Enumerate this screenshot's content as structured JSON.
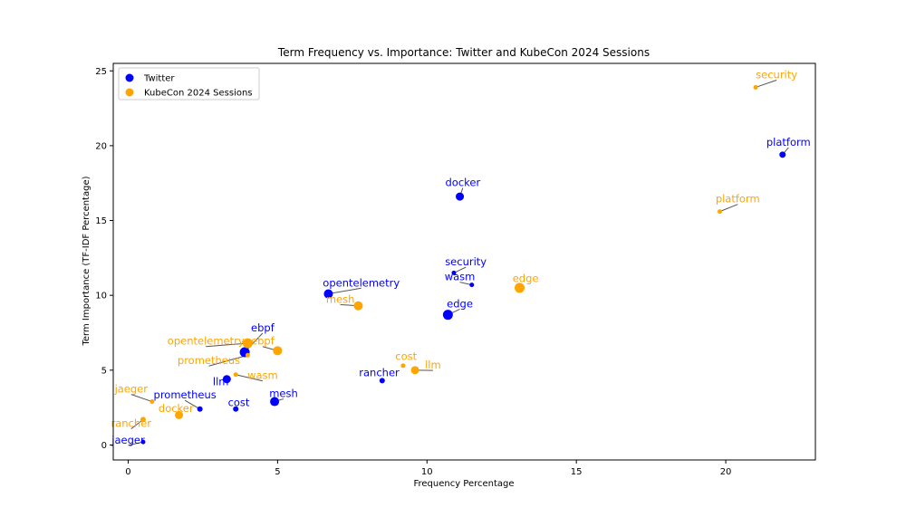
{
  "chart_data": {
    "type": "scatter",
    "title": "Term Frequency vs. Importance: Twitter and KubeCon 2024 Sessions",
    "xlabel": "Frequency Percentage",
    "ylabel": "Term Importance (TF-IDF Percentage)",
    "xlim": [
      -0.5,
      23
    ],
    "ylim": [
      -1,
      25.5
    ],
    "xticks": [
      0,
      5,
      10,
      15,
      20
    ],
    "yticks": [
      0,
      5,
      10,
      15,
      20,
      25
    ],
    "grid": false,
    "legend_position": "top-left",
    "series": [
      {
        "name": "Twitter",
        "color": "#0000ff",
        "points": [
          {
            "term": "platform",
            "x": 21.9,
            "y": 19.4,
            "size": 3.5,
            "label_dx": 22.1,
            "label_dy": 20.0
          },
          {
            "term": "docker",
            "x": 11.1,
            "y": 16.6,
            "size": 4.5,
            "label_dx": 11.2,
            "label_dy": 17.3
          },
          {
            "term": "security",
            "x": 10.9,
            "y": 11.5,
            "size": 2.5,
            "label_dx": 11.3,
            "label_dy": 12.0
          },
          {
            "term": "wasm",
            "x": 11.5,
            "y": 10.7,
            "size": 2.5,
            "label_dx": 11.1,
            "label_dy": 11.0
          },
          {
            "term": "opentelemetry",
            "x": 6.7,
            "y": 10.1,
            "size": 5.0,
            "label_dx": 7.8,
            "label_dy": 10.6
          },
          {
            "term": "edge",
            "x": 10.7,
            "y": 8.7,
            "size": 5.5,
            "label_dx": 11.1,
            "label_dy": 9.2
          },
          {
            "term": "ebpf",
            "x": 3.9,
            "y": 6.2,
            "size": 5.5,
            "label_dx": 4.5,
            "label_dy": 7.6
          },
          {
            "term": "llm",
            "x": 3.3,
            "y": 4.4,
            "size": 4.5,
            "label_dx": 3.1,
            "label_dy": 4.0
          },
          {
            "term": "rancher",
            "x": 8.5,
            "y": 4.3,
            "size": 3.0,
            "label_dx": 8.4,
            "label_dy": 4.6
          },
          {
            "term": "mesh",
            "x": 4.9,
            "y": 2.9,
            "size": 5.0,
            "label_dx": 5.2,
            "label_dy": 3.2
          },
          {
            "term": "prometheus",
            "x": 2.4,
            "y": 2.4,
            "size": 3.0,
            "label_dx": 1.9,
            "label_dy": 3.1
          },
          {
            "term": "cost",
            "x": 3.6,
            "y": 2.4,
            "size": 3.0,
            "label_dx": 3.7,
            "label_dy": 2.6
          },
          {
            "term": "jaeger",
            "x": 0.5,
            "y": 0.2,
            "size": 2.5,
            "label_dx": 0.0,
            "label_dy": 0.1
          }
        ]
      },
      {
        "name": "KubeCon 2024 Sessions",
        "color": "#ffa500",
        "points": [
          {
            "term": "security",
            "x": 21.0,
            "y": 23.9,
            "size": 2.5,
            "label_dx": 21.7,
            "label_dy": 24.5
          },
          {
            "term": "platform",
            "x": 19.8,
            "y": 15.6,
            "size": 2.5,
            "label_dx": 20.4,
            "label_dy": 16.2
          },
          {
            "term": "edge",
            "x": 13.1,
            "y": 10.5,
            "size": 5.5,
            "label_dx": 13.3,
            "label_dy": 10.9
          },
          {
            "term": "mesh",
            "x": 7.7,
            "y": 9.3,
            "size": 5.0,
            "label_dx": 7.1,
            "label_dy": 9.5
          },
          {
            "term": "opentelemetry",
            "x": 4.0,
            "y": 6.8,
            "size": 5.5,
            "label_dx": 2.6,
            "label_dy": 6.7
          },
          {
            "term": "ebpf",
            "x": 5.0,
            "y": 6.3,
            "size": 5.0,
            "label_dx": 4.5,
            "label_dy": 6.7
          },
          {
            "term": "prometheus",
            "x": 4.0,
            "y": 6.0,
            "size": 2.5,
            "label_dx": 2.7,
            "label_dy": 5.4
          },
          {
            "term": "wasm",
            "x": 3.6,
            "y": 4.7,
            "size": 2.5,
            "label_dx": 4.5,
            "label_dy": 4.4
          },
          {
            "term": "cost",
            "x": 9.2,
            "y": 5.3,
            "size": 2.5,
            "label_dx": 9.3,
            "label_dy": 5.7
          },
          {
            "term": "llm",
            "x": 9.6,
            "y": 5.0,
            "size": 4.5,
            "label_dx": 10.2,
            "label_dy": 5.1
          },
          {
            "term": "jaeger",
            "x": 0.8,
            "y": 2.9,
            "size": 2.5,
            "label_dx": 0.1,
            "label_dy": 3.5
          },
          {
            "term": "docker",
            "x": 1.7,
            "y": 2.0,
            "size": 4.5,
            "label_dx": 1.6,
            "label_dy": 2.2
          },
          {
            "term": "rancher",
            "x": 0.5,
            "y": 1.7,
            "size": 3.0,
            "label_dx": 0.1,
            "label_dy": 1.2
          }
        ]
      }
    ]
  }
}
